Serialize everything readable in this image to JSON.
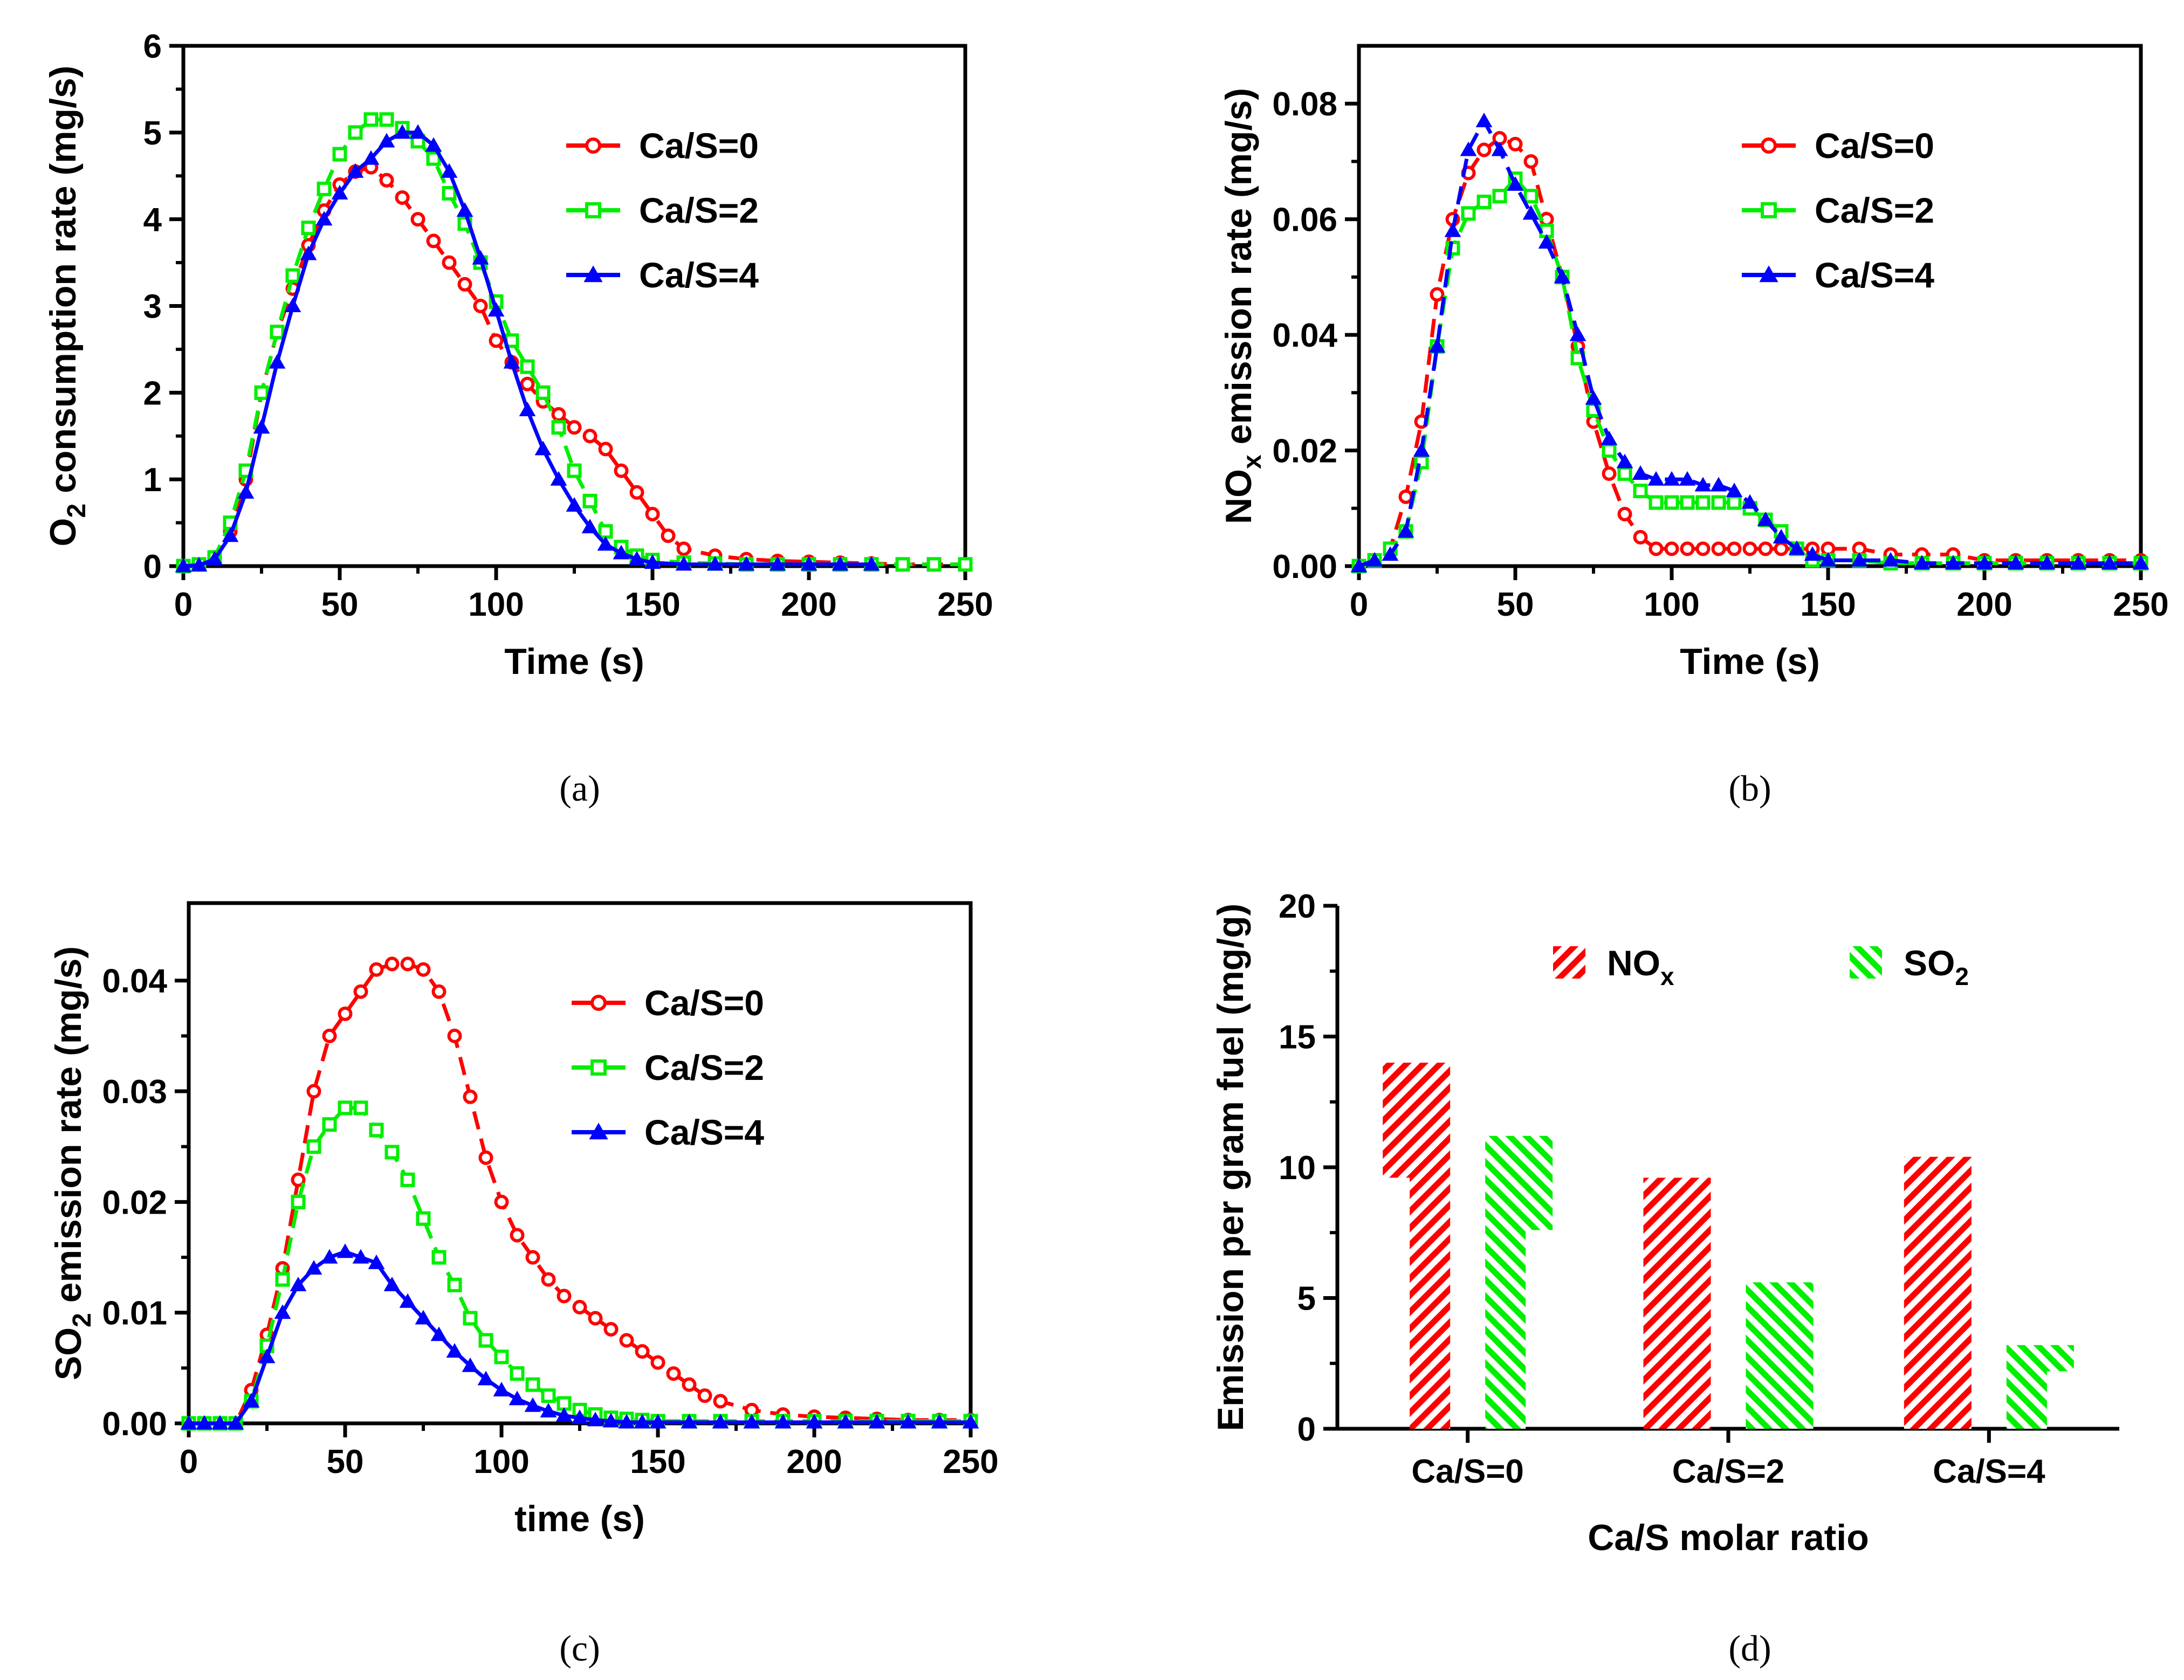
{
  "colors": {
    "red": "#ff0000",
    "green": "#00ee00",
    "blue": "#0000ff",
    "axis": "#000000"
  },
  "chart_data": [
    {
      "panel": "(a)",
      "type": "line",
      "xlabel": "Time (s)",
      "ylabel": "O2 consumption rate (mg/s)",
      "ylabel_parts": [
        "O",
        "2",
        " consumption rate (mg/s)"
      ],
      "xlim": [
        0,
        250
      ],
      "ylim": [
        0,
        6
      ],
      "xticks": [
        0,
        50,
        100,
        150,
        200,
        250
      ],
      "yticks": [
        0,
        1,
        2,
        3,
        4,
        5,
        6
      ],
      "ytick_labels": [
        "0",
        "1",
        "2",
        "3",
        "4",
        "5",
        "6"
      ],
      "legend_position": "top-right",
      "series": [
        {
          "name": "Ca/S=0",
          "color": "red",
          "marker": "circle",
          "dashed": true,
          "x": [
            0,
            5,
            10,
            15,
            20,
            25,
            30,
            35,
            40,
            45,
            50,
            55,
            60,
            65,
            70,
            75,
            80,
            85,
            90,
            95,
            100,
            105,
            110,
            115,
            120,
            125,
            130,
            135,
            140,
            145,
            150,
            155,
            160,
            170,
            180,
            190,
            200,
            210,
            220,
            230,
            240,
            250
          ],
          "y": [
            0.0,
            0.02,
            0.1,
            0.4,
            1.0,
            2.0,
            2.7,
            3.2,
            3.7,
            4.1,
            4.4,
            4.55,
            4.6,
            4.45,
            4.25,
            4.0,
            3.75,
            3.5,
            3.25,
            3.0,
            2.6,
            2.35,
            2.1,
            1.9,
            1.75,
            1.6,
            1.5,
            1.35,
            1.1,
            0.85,
            0.6,
            0.35,
            0.2,
            0.12,
            0.08,
            0.06,
            0.05,
            0.04,
            0.03,
            0.02,
            0.02,
            0.02
          ]
        },
        {
          "name": "Ca/S=2",
          "color": "green",
          "marker": "square",
          "dashed": true,
          "x": [
            0,
            5,
            10,
            15,
            20,
            25,
            30,
            35,
            40,
            45,
            50,
            55,
            60,
            65,
            70,
            75,
            80,
            85,
            90,
            95,
            100,
            105,
            110,
            115,
            120,
            125,
            130,
            135,
            140,
            145,
            150,
            160,
            170,
            180,
            190,
            200,
            210,
            220,
            230,
            240,
            250
          ],
          "y": [
            0.0,
            0.02,
            0.1,
            0.5,
            1.1,
            2.0,
            2.7,
            3.35,
            3.9,
            4.35,
            4.75,
            5.0,
            5.15,
            5.15,
            5.05,
            4.9,
            4.7,
            4.3,
            3.95,
            3.5,
            3.05,
            2.6,
            2.3,
            2.0,
            1.6,
            1.1,
            0.75,
            0.4,
            0.22,
            0.12,
            0.07,
            0.04,
            0.03,
            0.02,
            0.02,
            0.02,
            0.02,
            0.02,
            0.02,
            0.02,
            0.02
          ]
        },
        {
          "name": "Ca/S=4",
          "color": "blue",
          "marker": "triangle",
          "dashed": false,
          "x": [
            0,
            5,
            10,
            15,
            20,
            25,
            30,
            35,
            40,
            45,
            50,
            55,
            60,
            65,
            70,
            75,
            80,
            85,
            90,
            95,
            100,
            105,
            110,
            115,
            120,
            125,
            130,
            135,
            140,
            145,
            150,
            160,
            170,
            180,
            190,
            200,
            210,
            220
          ],
          "y": [
            0.0,
            0.01,
            0.08,
            0.35,
            0.85,
            1.6,
            2.35,
            3.0,
            3.6,
            4.0,
            4.3,
            4.55,
            4.7,
            4.9,
            5.0,
            5.0,
            4.85,
            4.55,
            4.1,
            3.55,
            2.95,
            2.35,
            1.8,
            1.35,
            1.0,
            0.7,
            0.45,
            0.25,
            0.15,
            0.08,
            0.04,
            0.02,
            0.02,
            0.02,
            0.02,
            0.02,
            0.02,
            0.02
          ]
        }
      ]
    },
    {
      "panel": "(b)",
      "type": "line",
      "xlabel": "Time (s)",
      "ylabel": "NOx emission rate (mg/s)",
      "ylabel_parts": [
        "NO",
        "x",
        " emission rate (mg/s)"
      ],
      "xlim": [
        0,
        250
      ],
      "ylim": [
        0,
        0.09
      ],
      "xticks": [
        0,
        50,
        100,
        150,
        200,
        250
      ],
      "yticks": [
        0.0,
        0.02,
        0.04,
        0.06,
        0.08
      ],
      "ytick_labels": [
        "0.00",
        "0.02",
        "0.04",
        "0.06",
        "0.08"
      ],
      "legend_position": "top-right",
      "series": [
        {
          "name": "Ca/S=0",
          "color": "red",
          "marker": "circle",
          "dashed": true,
          "x": [
            0,
            5,
            10,
            15,
            20,
            25,
            30,
            35,
            40,
            45,
            50,
            55,
            60,
            65,
            70,
            75,
            80,
            85,
            90,
            95,
            100,
            105,
            110,
            115,
            120,
            125,
            130,
            135,
            140,
            145,
            150,
            160,
            170,
            180,
            190,
            200,
            210,
            220,
            230,
            240,
            250
          ],
          "y": [
            0.0,
            0.001,
            0.003,
            0.012,
            0.025,
            0.047,
            0.06,
            0.068,
            0.072,
            0.074,
            0.073,
            0.07,
            0.06,
            0.05,
            0.038,
            0.025,
            0.016,
            0.009,
            0.005,
            0.003,
            0.003,
            0.003,
            0.003,
            0.003,
            0.003,
            0.003,
            0.003,
            0.003,
            0.003,
            0.003,
            0.003,
            0.003,
            0.002,
            0.002,
            0.002,
            0.001,
            0.001,
            0.001,
            0.001,
            0.001,
            0.001
          ]
        },
        {
          "name": "Ca/S=2",
          "color": "green",
          "marker": "square",
          "dashed": true,
          "x": [
            0,
            5,
            10,
            15,
            20,
            25,
            30,
            35,
            40,
            45,
            50,
            55,
            60,
            65,
            70,
            75,
            80,
            85,
            90,
            95,
            100,
            105,
            110,
            115,
            120,
            125,
            130,
            135,
            140,
            145,
            150,
            160,
            170,
            180,
            190,
            200,
            210,
            220,
            230,
            240,
            250
          ],
          "y": [
            0.0,
            0.001,
            0.003,
            0.006,
            0.018,
            0.038,
            0.055,
            0.061,
            0.063,
            0.064,
            0.067,
            0.064,
            0.058,
            0.05,
            0.036,
            0.027,
            0.02,
            0.016,
            0.013,
            0.011,
            0.011,
            0.011,
            0.011,
            0.011,
            0.011,
            0.01,
            0.008,
            0.006,
            0.003,
            0.001,
            0.001,
            0.001,
            0.0005,
            0.0005,
            0.0005,
            0.0005,
            0.0005,
            0.0005,
            0.0005,
            0.0005,
            0.0005
          ]
        },
        {
          "name": "Ca/S=4",
          "color": "blue",
          "marker": "triangle",
          "dashed": true,
          "x": [
            0,
            5,
            10,
            15,
            20,
            25,
            30,
            35,
            40,
            45,
            50,
            55,
            60,
            65,
            70,
            75,
            80,
            85,
            90,
            95,
            100,
            105,
            110,
            115,
            120,
            125,
            130,
            135,
            140,
            145,
            150,
            160,
            170,
            180,
            190,
            200,
            210,
            220,
            230,
            240,
            250
          ],
          "y": [
            0.0,
            0.001,
            0.002,
            0.006,
            0.02,
            0.038,
            0.058,
            0.072,
            0.077,
            0.072,
            0.066,
            0.061,
            0.056,
            0.05,
            0.04,
            0.029,
            0.022,
            0.018,
            0.016,
            0.015,
            0.015,
            0.015,
            0.014,
            0.014,
            0.013,
            0.011,
            0.008,
            0.005,
            0.003,
            0.002,
            0.001,
            0.001,
            0.001,
            0.0005,
            0.0005,
            0.0005,
            0.0005,
            0.0005,
            0.0005,
            0.0005,
            0.0005
          ]
        }
      ]
    },
    {
      "panel": "(c)",
      "type": "line",
      "xlabel": "time (s)",
      "ylabel": "SO2 emission rate (mg/s)",
      "ylabel_parts": [
        "SO",
        "2",
        " emission rate (mg/s)"
      ],
      "xlim": [
        0,
        250
      ],
      "ylim": [
        0,
        0.047
      ],
      "xticks": [
        0,
        50,
        100,
        150,
        200,
        250
      ],
      "yticks": [
        0.0,
        0.01,
        0.02,
        0.03,
        0.04
      ],
      "ytick_labels": [
        "0.00",
        "0.01",
        "0.02",
        "0.03",
        "0.04"
      ],
      "legend_position": "top-right",
      "series": [
        {
          "name": "Ca/S=0",
          "color": "red",
          "marker": "circle",
          "dashed": true,
          "x": [
            0,
            5,
            10,
            15,
            20,
            25,
            30,
            35,
            40,
            45,
            50,
            55,
            60,
            65,
            70,
            75,
            80,
            85,
            90,
            95,
            100,
            105,
            110,
            115,
            120,
            125,
            130,
            135,
            140,
            145,
            150,
            155,
            160,
            165,
            170,
            180,
            190,
            200,
            210,
            220,
            230,
            240,
            250
          ],
          "y": [
            0.0,
            0.0,
            0.0,
            0.0,
            0.003,
            0.008,
            0.014,
            0.022,
            0.03,
            0.035,
            0.037,
            0.039,
            0.041,
            0.0415,
            0.0415,
            0.041,
            0.039,
            0.035,
            0.0295,
            0.024,
            0.02,
            0.017,
            0.015,
            0.013,
            0.0115,
            0.0105,
            0.0095,
            0.0085,
            0.0075,
            0.0065,
            0.0055,
            0.0045,
            0.0035,
            0.0025,
            0.002,
            0.0012,
            0.0008,
            0.0006,
            0.0005,
            0.0004,
            0.0003,
            0.0003,
            0.0003
          ]
        },
        {
          "name": "Ca/S=2",
          "color": "green",
          "marker": "square",
          "dashed": true,
          "x": [
            0,
            5,
            10,
            15,
            20,
            25,
            30,
            35,
            40,
            45,
            50,
            55,
            60,
            65,
            70,
            75,
            80,
            85,
            90,
            95,
            100,
            105,
            110,
            115,
            120,
            125,
            130,
            135,
            140,
            145,
            150,
            160,
            170,
            180,
            190,
            200,
            210,
            220,
            230,
            240,
            250
          ],
          "y": [
            0.0,
            0.0,
            0.0,
            0.0,
            0.002,
            0.007,
            0.013,
            0.02,
            0.025,
            0.027,
            0.0285,
            0.0285,
            0.0265,
            0.0245,
            0.022,
            0.0185,
            0.015,
            0.0125,
            0.0095,
            0.0075,
            0.006,
            0.0045,
            0.0035,
            0.0025,
            0.0018,
            0.0012,
            0.0008,
            0.0005,
            0.0004,
            0.0003,
            0.0002,
            0.0002,
            0.0002,
            0.0002,
            0.0002,
            0.0002,
            0.0002,
            0.0002,
            0.0002,
            0.0002,
            0.0002
          ]
        },
        {
          "name": "Ca/S=4",
          "color": "blue",
          "marker": "triangle",
          "dashed": false,
          "x": [
            0,
            5,
            10,
            15,
            20,
            25,
            30,
            35,
            40,
            45,
            50,
            55,
            60,
            65,
            70,
            75,
            80,
            85,
            90,
            95,
            100,
            105,
            110,
            115,
            120,
            125,
            130,
            135,
            140,
            145,
            150,
            160,
            170,
            180,
            190,
            200,
            210,
            220,
            230,
            240,
            250
          ],
          "y": [
            0.0,
            0.0,
            0.0,
            0.0,
            0.002,
            0.006,
            0.01,
            0.0125,
            0.014,
            0.015,
            0.0155,
            0.015,
            0.0145,
            0.0125,
            0.011,
            0.0095,
            0.008,
            0.0065,
            0.0052,
            0.004,
            0.003,
            0.0022,
            0.0016,
            0.0011,
            0.0007,
            0.0005,
            0.0003,
            0.0002,
            0.0001,
            0.0001,
            0.0001,
            0.0001,
            0.0001,
            0.0001,
            0.0001,
            0.0001,
            0.0001,
            0.0001,
            0.0001,
            0.0001,
            0.0001
          ]
        }
      ]
    },
    {
      "panel": "(d)",
      "type": "bar",
      "xlabel": "Ca/S molar ratio",
      "ylabel": "Emission per gram fuel (mg/g)",
      "categories": [
        "Ca/S=0",
        "Ca/S=2",
        "Ca/S=4"
      ],
      "ylim": [
        0,
        20
      ],
      "yticks": [
        0,
        5,
        10,
        15,
        20
      ],
      "ytick_labels": [
        "0",
        "5",
        "10",
        "15",
        "20"
      ],
      "legend_position": "top-center",
      "series": [
        {
          "name": "NOx",
          "name_parts": [
            "NO",
            "x"
          ],
          "color": "red",
          "pattern": "hatch-up",
          "values": [
            14.0,
            9.6,
            10.4
          ],
          "split_low": [
            9.6,
            null,
            null
          ]
        },
        {
          "name": "SO2",
          "name_parts": [
            "SO",
            "2"
          ],
          "color": "green",
          "pattern": "hatch-down",
          "values": [
            11.2,
            5.6,
            3.2
          ],
          "split_low": [
            7.6,
            null,
            2.2
          ]
        }
      ]
    }
  ]
}
